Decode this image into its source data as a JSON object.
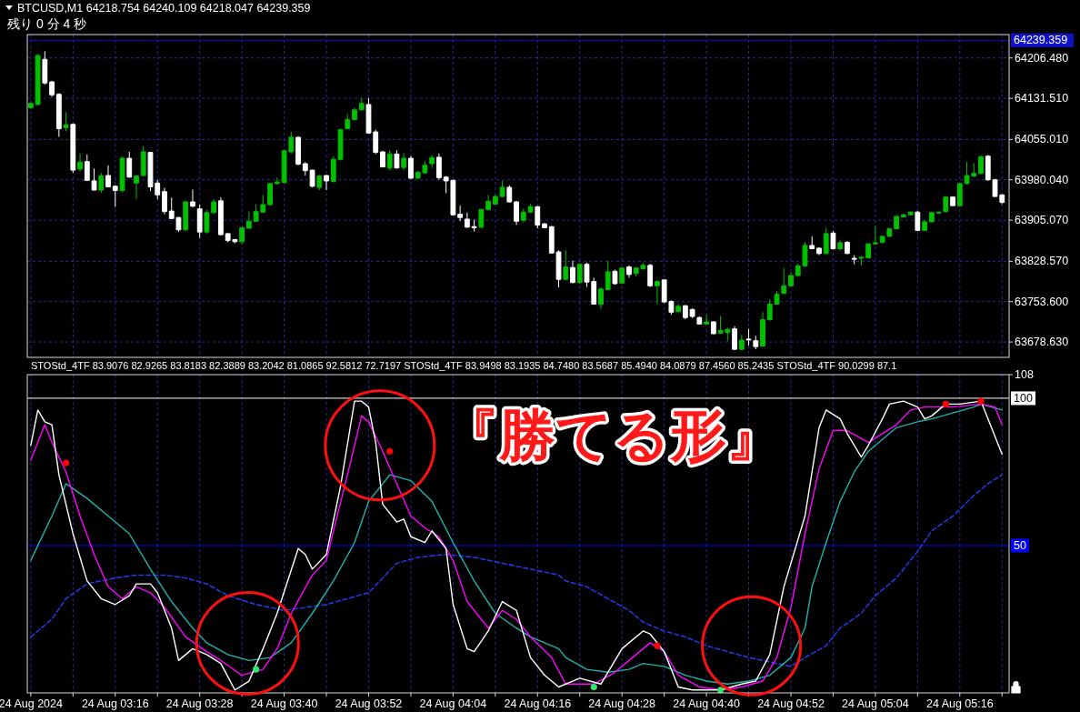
{
  "chart_data": [
    {
      "type": "candlestick",
      "annotations": [
        "BTCUSD,M1  64218.754 64240.109 64218.047 64239.359",
        "残り 0 分 4 秒"
      ],
      "x": [
        "2024-08-24T03:04",
        "2024-08-24T03:05",
        "2024-08-24T03:06",
        "2024-08-24T03:07",
        "2024-08-24T03:08",
        "2024-08-24T03:09",
        "2024-08-24T03:10",
        "2024-08-24T03:11",
        "2024-08-24T03:12",
        "2024-08-24T03:13",
        "2024-08-24T03:14",
        "2024-08-24T03:15",
        "2024-08-24T03:16",
        "2024-08-24T03:17",
        "2024-08-24T03:18",
        "2024-08-24T03:19",
        "2024-08-24T03:20",
        "2024-08-24T03:21",
        "2024-08-24T03:22",
        "2024-08-24T03:23",
        "2024-08-24T03:24",
        "2024-08-24T03:25",
        "2024-08-24T03:26",
        "2024-08-24T03:27",
        "2024-08-24T03:28",
        "2024-08-24T03:29",
        "2024-08-24T03:30",
        "2024-08-24T03:31",
        "2024-08-24T03:32",
        "2024-08-24T03:33",
        "2024-08-24T03:34",
        "2024-08-24T03:35",
        "2024-08-24T03:36",
        "2024-08-24T03:37",
        "2024-08-24T03:38",
        "2024-08-24T03:39",
        "2024-08-24T03:40",
        "2024-08-24T03:41",
        "2024-08-24T03:42",
        "2024-08-24T03:43",
        "2024-08-24T03:44",
        "2024-08-24T03:45",
        "2024-08-24T03:46",
        "2024-08-24T03:47",
        "2024-08-24T03:48",
        "2024-08-24T03:49",
        "2024-08-24T03:50",
        "2024-08-24T03:51",
        "2024-08-24T03:52",
        "2024-08-24T03:53",
        "2024-08-24T03:54",
        "2024-08-24T03:55",
        "2024-08-24T03:56",
        "2024-08-24T03:57",
        "2024-08-24T03:58",
        "2024-08-24T03:59",
        "2024-08-24T04:00",
        "2024-08-24T04:01",
        "2024-08-24T04:02",
        "2024-08-24T04:03",
        "2024-08-24T04:04",
        "2024-08-24T04:05",
        "2024-08-24T04:06",
        "2024-08-24T04:07",
        "2024-08-24T04:08",
        "2024-08-24T04:09",
        "2024-08-24T04:10",
        "2024-08-24T04:11",
        "2024-08-24T04:12",
        "2024-08-24T04:13",
        "2024-08-24T04:14",
        "2024-08-24T04:15",
        "2024-08-24T04:16",
        "2024-08-24T04:17",
        "2024-08-24T04:18",
        "2024-08-24T04:19",
        "2024-08-24T04:20",
        "2024-08-24T04:21",
        "2024-08-24T04:22",
        "2024-08-24T04:23",
        "2024-08-24T04:24",
        "2024-08-24T04:25",
        "2024-08-24T04:26",
        "2024-08-24T04:27",
        "2024-08-24T04:28",
        "2024-08-24T04:29",
        "2024-08-24T04:30",
        "2024-08-24T04:31",
        "2024-08-24T04:32",
        "2024-08-24T04:33",
        "2024-08-24T04:34",
        "2024-08-24T04:35",
        "2024-08-24T04:36",
        "2024-08-24T04:37",
        "2024-08-24T04:38",
        "2024-08-24T04:39",
        "2024-08-24T04:40",
        "2024-08-24T04:41",
        "2024-08-24T04:42",
        "2024-08-24T04:43",
        "2024-08-24T04:44",
        "2024-08-24T04:45",
        "2024-08-24T04:46",
        "2024-08-24T04:47",
        "2024-08-24T04:48",
        "2024-08-24T04:49",
        "2024-08-24T04:50",
        "2024-08-24T04:51",
        "2024-08-24T04:52",
        "2024-08-24T04:53",
        "2024-08-24T04:54",
        "2024-08-24T04:55",
        "2024-08-24T04:56",
        "2024-08-24T04:57",
        "2024-08-24T04:58",
        "2024-08-24T04:59",
        "2024-08-24T05:00",
        "2024-08-24T05:01",
        "2024-08-24T05:02",
        "2024-08-24T05:03",
        "2024-08-24T05:04",
        "2024-08-24T05:05",
        "2024-08-24T05:06",
        "2024-08-24T05:07",
        "2024-08-24T05:08",
        "2024-08-24T05:09",
        "2024-08-24T05:10",
        "2024-08-24T05:11",
        "2024-08-24T05:12",
        "2024-08-24T05:13",
        "2024-08-24T05:14",
        "2024-08-24T05:15",
        "2024-08-24T05:16",
        "2024-08-24T05:17",
        "2024-08-24T05:18",
        "2024-08-24T05:19",
        "2024-08-24T05:20",
        "2024-08-24T05:21",
        "2024-08-24T05:22"
      ],
      "ohlc": [
        [
          64114,
          64124,
          64112,
          64122
        ],
        [
          64120,
          64214,
          64118,
          64211
        ],
        [
          64204,
          64219,
          64157,
          64160
        ],
        [
          64162,
          64164,
          64134,
          64138
        ],
        [
          64139,
          64141,
          64060,
          64075
        ],
        [
          64077,
          64106,
          64070,
          64082
        ],
        [
          64083,
          64085,
          63993,
          63998
        ],
        [
          64000,
          64029,
          63996,
          64013
        ],
        [
          64014,
          64027,
          63978,
          63979
        ],
        [
          63978,
          64001,
          63960,
          63961
        ],
        [
          63961,
          63993,
          63956,
          63987
        ],
        [
          63988,
          64007,
          63966,
          63967
        ],
        [
          63968,
          63970,
          63930,
          63960
        ],
        [
          63960,
          64023,
          63957,
          64020
        ],
        [
          64020,
          64032,
          63984,
          63985
        ],
        [
          63974,
          63989,
          63944,
          63987
        ],
        [
          63988,
          64043,
          63987,
          64032
        ],
        [
          64031,
          64032,
          63959,
          63967
        ],
        [
          63974,
          63980,
          63944,
          63952
        ],
        [
          63958,
          63965,
          63916,
          63921
        ],
        [
          63922,
          63947,
          63907,
          63908
        ],
        [
          63910,
          63911,
          63883,
          63887
        ],
        [
          63887,
          63941,
          63885,
          63939
        ],
        [
          63939,
          63962,
          63929,
          63931
        ],
        [
          63926,
          63934,
          63872,
          63883
        ],
        [
          63883,
          63924,
          63880,
          63919
        ],
        [
          63919,
          63944,
          63917,
          63939
        ],
        [
          63941,
          63947,
          63877,
          63878
        ],
        [
          63880,
          63881,
          63864,
          63867
        ],
        [
          63869,
          63870,
          63862,
          63865
        ],
        [
          63865,
          63893,
          63860,
          63891
        ],
        [
          63890,
          63921,
          63889,
          63903
        ],
        [
          63903,
          63934,
          63902,
          63921
        ],
        [
          63920,
          63952,
          63919,
          63934
        ],
        [
          63934,
          63975,
          63932,
          63973
        ],
        [
          63973,
          63984,
          63972,
          63976
        ],
        [
          63975,
          64035,
          63974,
          64034
        ],
        [
          64032,
          64069,
          64029,
          64059
        ],
        [
          64059,
          64061,
          64007,
          64009
        ],
        [
          64010,
          64013,
          63988,
          63997
        ],
        [
          63998,
          63999,
          63966,
          63968
        ],
        [
          63966,
          63989,
          63961,
          63987
        ],
        [
          63988,
          63989,
          63961,
          63978
        ],
        [
          63977,
          64024,
          63975,
          64018
        ],
        [
          64018,
          64075,
          64016,
          64073
        ],
        [
          64075,
          64102,
          64074,
          64092
        ],
        [
          64092,
          64114,
          64091,
          64110
        ],
        [
          64110,
          64132,
          64109,
          64122
        ],
        [
          64120,
          64132,
          64066,
          64067
        ],
        [
          64069,
          64073,
          64028,
          64031
        ],
        [
          64032,
          64033,
          64003,
          64004
        ],
        [
          64002,
          64035,
          63998,
          64028
        ],
        [
          64028,
          64035,
          64001,
          64002
        ],
        [
          64003,
          64030,
          63998,
          64020
        ],
        [
          64020,
          64024,
          63982,
          63983
        ],
        [
          63983,
          63996,
          63982,
          63994
        ],
        [
          63993,
          64014,
          63992,
          64007
        ],
        [
          64010,
          64026,
          64002,
          64021
        ],
        [
          64022,
          64029,
          63980,
          63984
        ],
        [
          63985,
          63987,
          63955,
          63978
        ],
        [
          63979,
          63980,
          63914,
          63915
        ],
        [
          63916,
          63932,
          63903,
          63910
        ],
        [
          63907,
          63919,
          63891,
          63892
        ],
        [
          63893,
          63906,
          63884,
          63891
        ],
        [
          63892,
          63926,
          63890,
          63925
        ],
        [
          63925,
          63952,
          63923,
          63940
        ],
        [
          63935,
          63952,
          63934,
          63949
        ],
        [
          63949,
          63978,
          63948,
          63966
        ],
        [
          63966,
          63970,
          63938,
          63939
        ],
        [
          63939,
          63941,
          63896,
          63903
        ],
        [
          63905,
          63926,
          63901,
          63920
        ],
        [
          63920,
          63935,
          63919,
          63930
        ],
        [
          63930,
          63931,
          63890,
          63896
        ],
        [
          63898,
          63900,
          63890,
          63891
        ],
        [
          63893,
          63894,
          63843,
          63844
        ],
        [
          63846,
          63849,
          63780,
          63795
        ],
        [
          63795,
          63849,
          63794,
          63818
        ],
        [
          63817,
          63830,
          63788,
          63789
        ],
        [
          63789,
          63825,
          63787,
          63823
        ],
        [
          63823,
          63826,
          63781,
          63790
        ],
        [
          63791,
          63798,
          63748,
          63749
        ],
        [
          63749,
          63780,
          63740,
          63777
        ],
        [
          63776,
          63829,
          63775,
          63809
        ],
        [
          63810,
          63813,
          63785,
          63787
        ],
        [
          63788,
          63817,
          63787,
          63816
        ],
        [
          63818,
          63821,
          63798,
          63804
        ],
        [
          63806,
          63817,
          63800,
          63816
        ],
        [
          63815,
          63825,
          63813,
          63821
        ],
        [
          63821,
          63824,
          63781,
          63783
        ],
        [
          63783,
          63793,
          63749,
          63791
        ],
        [
          63794,
          63795,
          63751,
          63753
        ],
        [
          63754,
          63756,
          63729,
          63734
        ],
        [
          63735,
          63749,
          63734,
          63745
        ],
        [
          63746,
          63747,
          63721,
          63724
        ],
        [
          63739,
          63741,
          63723,
          63726
        ],
        [
          63724,
          63726,
          63711,
          63712
        ],
        [
          63712,
          63729,
          63711,
          63716
        ],
        [
          63716,
          63717,
          63693,
          63694
        ],
        [
          63695,
          63727,
          63694,
          63700
        ],
        [
          63696,
          63705,
          63680,
          63702
        ],
        [
          63703,
          63708,
          63664,
          63665
        ],
        [
          63665,
          63692,
          63663,
          63682
        ],
        [
          63684,
          63703,
          63672,
          63683
        ],
        [
          63681,
          63690,
          63665,
          63670
        ],
        [
          63671,
          63734,
          63670,
          63720
        ],
        [
          63720,
          63758,
          63718,
          63749
        ],
        [
          63749,
          63773,
          63748,
          63767
        ],
        [
          63769,
          63816,
          63767,
          63783
        ],
        [
          63783,
          63808,
          63782,
          63802
        ],
        [
          63802,
          63824,
          63800,
          63820
        ],
        [
          63820,
          63864,
          63818,
          63858
        ],
        [
          63858,
          63875,
          63851,
          63852
        ],
        [
          63853,
          63854,
          63840,
          63843
        ],
        [
          63843,
          63891,
          63842,
          63880
        ],
        [
          63881,
          63885,
          63850,
          63852
        ],
        [
          63852,
          63867,
          63849,
          63863
        ],
        [
          63864,
          63866,
          63842,
          63843
        ],
        [
          63834,
          63840,
          63823,
          63833
        ],
        [
          63835,
          63838,
          63820,
          63836
        ],
        [
          63835,
          63862,
          63834,
          63861
        ],
        [
          63861,
          63894,
          63860,
          63863
        ],
        [
          63864,
          63876,
          63862,
          63875
        ],
        [
          63875,
          63890,
          63874,
          63889
        ],
        [
          63889,
          63914,
          63888,
          63912
        ],
        [
          63911,
          63917,
          63910,
          63915
        ],
        [
          63915,
          63921,
          63914,
          63920
        ],
        [
          63920,
          63922,
          63885,
          63886
        ],
        [
          63886,
          63906,
          63885,
          63902
        ],
        [
          63902,
          63921,
          63901,
          63919
        ],
        [
          63919,
          63921,
          63918,
          63920
        ],
        [
          63921,
          63949,
          63920,
          63948
        ],
        [
          63948,
          63949,
          63931,
          63932
        ],
        [
          63932,
          63974,
          63931,
          63973
        ],
        [
          63973,
          64013,
          63972,
          63988
        ],
        [
          63987,
          64011,
          63985,
          63992
        ],
        [
          63992,
          64025,
          63990,
          64023
        ],
        [
          64024,
          64026,
          63978,
          63980
        ],
        [
          63980,
          63982,
          63948,
          63949
        ],
        [
          63952,
          63953,
          63935,
          63938
        ]
      ],
      "colors": [
        "#00c000",
        "#00c000",
        "#ffffff",
        "#ffffff",
        "#ffffff",
        "#00c000",
        "#ffffff",
        "#00c000",
        "#ffffff",
        "#ffffff",
        "#00c000",
        "#ffffff",
        "#ffffff",
        "#00c000",
        "#ffffff",
        "#00c000",
        "#00c000",
        "#ffffff",
        "#ffffff",
        "#ffffff",
        "#ffffff",
        "#ffffff",
        "#00c000",
        "#ffffff",
        "#ffffff",
        "#00c000",
        "#00c000",
        "#ffffff",
        "#ffffff",
        "#ffffff",
        "#00c000",
        "#00c000",
        "#00c000",
        "#00c000",
        "#00c000",
        "#00c000",
        "#00c000",
        "#00c000",
        "#ffffff",
        "#ffffff",
        "#ffffff",
        "#00c000",
        "#ffffff",
        "#00c000",
        "#00c000",
        "#00c000",
        "#00c000",
        "#00c000",
        "#ffffff",
        "#ffffff",
        "#ffffff",
        "#00c000",
        "#ffffff",
        "#00c000",
        "#ffffff",
        "#00c000",
        "#00c000",
        "#00c000",
        "#ffffff",
        "#ffffff",
        "#ffffff",
        "#ffffff",
        "#ffffff",
        "#ffffff",
        "#00c000",
        "#00c000",
        "#00c000",
        "#00c000",
        "#ffffff",
        "#ffffff",
        "#00c000",
        "#00c000",
        "#ffffff",
        "#ffffff",
        "#ffffff",
        "#ffffff",
        "#00c000",
        "#ffffff",
        "#00c000",
        "#ffffff",
        "#ffffff",
        "#00c000",
        "#00c000",
        "#ffffff",
        "#00c000",
        "#ffffff",
        "#00c000",
        "#00c000",
        "#ffffff",
        "#00c000",
        "#ffffff",
        "#ffffff",
        "#00c000",
        "#ffffff",
        "#ffffff",
        "#ffffff",
        "#00c000",
        "#ffffff",
        "#00c000",
        "#00c000",
        "#ffffff",
        "#00c000",
        "#ffffff",
        "#ffffff",
        "#00c000",
        "#00c000",
        "#00c000",
        "#00c000",
        "#00c000",
        "#00c000",
        "#00c000",
        "#ffffff",
        "#ffffff",
        "#00c000",
        "#ffffff",
        "#00c000",
        "#ffffff",
        "#ffffff",
        "#00c000",
        "#00c000",
        "#00c000",
        "#00c000",
        "#00c000",
        "#00c000",
        "#00c000",
        "#00c000",
        "#ffffff",
        "#00c000",
        "#00c000",
        "#00c000",
        "#00c000",
        "#ffffff",
        "#00c000",
        "#00c000",
        "#00c000",
        "#00c000",
        "#ffffff",
        "#ffffff",
        "#ffffff"
      ],
      "xlim": [
        "2024-08-24T03:03:30",
        "2024-08-24T05:23"
      ],
      "xticks": [
        "2024-08-24T03:04",
        "2024-08-24T03:10",
        "2024-08-24T03:16",
        "2024-08-24T03:22",
        "2024-08-24T03:28",
        "2024-08-24T03:34",
        "2024-08-24T03:40",
        "2024-08-24T03:46",
        "2024-08-24T03:52",
        "2024-08-24T03:58",
        "2024-08-24T04:04",
        "2024-08-24T04:10",
        "2024-08-24T04:16",
        "2024-08-24T04:22",
        "2024-08-24T04:28",
        "2024-08-24T04:34",
        "2024-08-24T04:40",
        "2024-08-24T04:46",
        "2024-08-24T04:52",
        "2024-08-24T04:58",
        "2024-08-24T05:04",
        "2024-08-24T05:10",
        "2024-08-24T05:16",
        "2024-08-24T05:22"
      ],
      "ylim": [
        63650,
        64250
      ],
      "yticks": [
        {
          "value": 63678.63,
          "label": "63678.630"
        },
        {
          "value": 63753.6,
          "label": "63753.600"
        },
        {
          "value": 63828.57,
          "label": "63828.570"
        },
        {
          "value": 63905.07,
          "label": "63905.070"
        },
        {
          "value": 63980.04,
          "label": "63980.040"
        },
        {
          "value": 64055.01,
          "label": "64055.010"
        },
        {
          "value": 64131.51,
          "label": "64131.510"
        },
        {
          "value": 64206.48,
          "label": "64206.480"
        }
      ],
      "grid": true,
      "tick_labels": "y",
      "ref_lines": [
        {
          "axis": "y",
          "value": 64239.359,
          "label": "64239.359",
          "color": "#1010c8"
        }
      ]
    },
    {
      "type": "line",
      "annotations": [
        "STOStd_4TF 83.9076 82.9265 83.8183 82.3889 83.2042 81.0865 92.5812 72.7197  STOStd_4TF 83.9498 83.1935 84.7480 83.5687 85.4940 84.0879 87.4560 85.2435  STOStd_4TF 90.0299 87.1",
        "『勝てる形』"
      ],
      "series": [
        {
          "color": "#2040ff",
          "line_style": "dashed",
          "x": [
            "2024-08-24T03:04",
            "2024-08-24T03:07",
            "2024-08-24T03:09",
            "2024-08-24T03:12",
            "2024-08-24T03:16",
            "2024-08-24T03:19",
            "2024-08-24T03:23",
            "2024-08-24T03:26",
            "2024-08-24T03:29",
            "2024-08-24T03:32",
            "2024-08-24T03:36",
            "2024-08-24T03:40",
            "2024-08-24T03:43",
            "2024-08-24T03:46",
            "2024-08-24T03:49",
            "2024-08-24T03:52",
            "2024-08-24T03:54",
            "2024-08-24T03:56",
            "2024-08-24T03:59",
            "2024-08-24T04:03",
            "2024-08-24T04:07",
            "2024-08-24T04:11",
            "2024-08-24T04:15",
            "2024-08-24T04:19",
            "2024-08-24T04:20",
            "2024-08-24T04:23",
            "2024-08-24T04:26",
            "2024-08-24T04:29",
            "2024-08-24T04:31",
            "2024-08-24T04:34",
            "2024-08-24T04:37",
            "2024-08-24T04:40",
            "2024-08-24T04:43",
            "2024-08-24T04:46",
            "2024-08-24T04:48",
            "2024-08-24T04:52",
            "2024-08-24T04:54",
            "2024-08-24T04:57",
            "2024-08-24T04:59",
            "2024-08-24T05:02",
            "2024-08-24T05:04",
            "2024-08-24T05:07",
            "2024-08-24T05:10",
            "2024-08-24T05:12",
            "2024-08-24T05:15",
            "2024-08-24T05:18",
            "2024-08-24T05:20",
            "2024-08-24T05:22"
          ],
          "values": [
            19,
            25,
            32,
            37,
            39,
            40,
            40,
            39,
            37,
            33,
            30,
            28,
            29,
            30,
            32,
            34,
            39,
            44,
            46,
            47,
            46,
            44,
            42,
            40,
            38,
            36,
            32,
            28,
            24,
            21,
            19,
            16,
            14,
            12,
            11,
            9,
            12,
            16,
            22,
            27,
            33,
            39,
            48,
            55,
            60,
            67,
            71,
            74
          ]
        },
        {
          "color": "#20b2aa",
          "x": [
            "2024-08-24T03:04",
            "2024-08-24T03:07",
            "2024-08-24T03:09",
            "2024-08-24T03:12",
            "2024-08-24T03:15",
            "2024-08-24T03:18",
            "2024-08-24T03:21",
            "2024-08-24T03:24",
            "2024-08-24T03:27",
            "2024-08-24T03:29",
            "2024-08-24T03:32",
            "2024-08-24T03:35",
            "2024-08-24T03:38",
            "2024-08-24T03:41",
            "2024-08-24T03:44",
            "2024-08-24T03:47",
            "2024-08-24T03:50",
            "2024-08-24T03:52",
            "2024-08-24T03:55",
            "2024-08-24T03:58",
            "2024-08-24T04:01",
            "2024-08-24T04:04",
            "2024-08-24T04:07",
            "2024-08-24T04:10",
            "2024-08-24T04:13",
            "2024-08-24T04:15",
            "2024-08-24T04:19",
            "2024-08-24T04:20",
            "2024-08-24T04:23",
            "2024-08-24T04:26",
            "2024-08-24T04:29",
            "2024-08-24T04:31",
            "2024-08-24T04:34",
            "2024-08-24T04:37",
            "2024-08-24T04:40",
            "2024-08-24T04:43",
            "2024-08-24T04:46",
            "2024-08-24T04:49",
            "2024-08-24T04:52",
            "2024-08-24T04:54",
            "2024-08-24T04:55",
            "2024-08-24T04:57",
            "2024-08-24T04:59",
            "2024-08-24T05:01",
            "2024-08-24T05:03",
            "2024-08-24T05:05",
            "2024-08-24T05:07",
            "2024-08-24T05:10",
            "2024-08-24T05:12",
            "2024-08-24T05:15",
            "2024-08-24T05:18",
            "2024-08-24T05:19",
            "2024-08-24T05:22"
          ],
          "values": [
            45,
            60,
            71,
            66,
            60,
            54,
            42,
            31,
            22,
            17,
            13,
            11,
            12,
            17,
            27,
            38,
            51,
            65,
            74,
            72,
            65,
            51,
            38,
            27,
            22,
            19,
            15,
            12,
            8,
            7,
            8,
            10,
            9,
            6,
            4,
            3,
            4,
            6,
            12,
            22,
            36,
            51,
            65,
            75,
            82,
            86,
            90,
            92,
            93,
            95,
            97,
            98,
            96
          ]
        },
        {
          "color": "#ff00ff",
          "x": [
            "2024-08-24T03:04",
            "2024-08-24T03:06",
            "2024-08-24T03:07",
            "2024-08-24T03:09",
            "2024-08-24T03:11",
            "2024-08-24T03:13",
            "2024-08-24T03:15",
            "2024-08-24T03:17",
            "2024-08-24T03:19",
            "2024-08-24T03:21",
            "2024-08-24T03:23",
            "2024-08-24T03:26",
            "2024-08-24T03:29",
            "2024-08-24T03:31",
            "2024-08-24T03:34",
            "2024-08-24T03:37",
            "2024-08-24T03:39",
            "2024-08-24T03:41",
            "2024-08-24T03:44",
            "2024-08-24T03:46",
            "2024-08-24T03:47",
            "2024-08-24T03:49",
            "2024-08-24T03:51",
            "2024-08-24T03:52",
            "2024-08-24T03:54",
            "2024-08-24T03:56",
            "2024-08-24T03:58",
            "2024-08-24T04:00",
            "2024-08-24T04:02",
            "2024-08-24T04:04",
            "2024-08-24T04:06",
            "2024-08-24T04:09",
            "2024-08-24T04:11",
            "2024-08-24T04:13",
            "2024-08-24T04:15",
            "2024-08-24T04:18",
            "2024-08-24T04:20",
            "2024-08-24T04:24",
            "2024-08-24T04:27",
            "2024-08-24T04:30",
            "2024-08-24T04:32",
            "2024-08-24T04:34",
            "2024-08-24T04:36",
            "2024-08-24T04:39",
            "2024-08-24T04:42",
            "2024-08-24T04:45",
            "2024-08-24T04:48",
            "2024-08-24T04:50",
            "2024-08-24T04:52",
            "2024-08-24T04:54",
            "2024-08-24T04:56",
            "2024-08-24T04:58",
            "2024-08-24T05:00",
            "2024-08-24T05:03",
            "2024-08-24T05:05",
            "2024-08-24T05:07",
            "2024-08-24T05:09",
            "2024-08-24T05:11",
            "2024-08-24T05:15",
            "2024-08-24T05:19",
            "2024-08-24T05:21",
            "2024-08-24T05:22"
          ],
          "values": [
            79,
            91,
            85,
            75,
            60,
            47,
            36,
            32,
            36,
            34,
            29,
            19,
            14,
            11,
            6,
            8,
            15,
            27,
            40,
            45,
            55,
            74,
            94,
            92,
            82,
            71,
            60,
            56,
            53,
            45,
            31,
            22,
            28,
            25,
            19,
            12,
            3,
            3,
            7,
            13,
            17,
            14,
            6,
            2,
            1,
            2,
            4,
            12,
            29,
            54,
            76,
            89,
            89,
            85,
            88,
            91,
            96,
            97,
            97,
            98,
            97,
            91
          ]
        },
        {
          "color": "#ffffff",
          "x": [
            "2024-08-24T03:04",
            "2024-08-24T03:05",
            "2024-08-24T03:06",
            "2024-08-24T03:07",
            "2024-08-24T03:08",
            "2024-08-24T03:10",
            "2024-08-24T03:12",
            "2024-08-24T03:14",
            "2024-08-24T03:16",
            "2024-08-24T03:18",
            "2024-08-24T03:19",
            "2024-08-24T03:21",
            "2024-08-24T03:22",
            "2024-08-24T03:24",
            "2024-08-24T03:25",
            "2024-08-24T03:27",
            "2024-08-24T03:29",
            "2024-08-24T03:31",
            "2024-08-24T03:33",
            "2024-08-24T03:35",
            "2024-08-24T03:37",
            "2024-08-24T03:39",
            "2024-08-24T03:42",
            "2024-08-24T03:43",
            "2024-08-24T03:44",
            "2024-08-24T03:46",
            "2024-08-24T03:48",
            "2024-08-24T03:50",
            "2024-08-24T03:51",
            "2024-08-24T03:52",
            "2024-08-24T03:53",
            "2024-08-24T03:54",
            "2024-08-24T03:56",
            "2024-08-24T03:57",
            "2024-08-24T03:58",
            "2024-08-24T04:00",
            "2024-08-24T04:01",
            "2024-08-24T04:03",
            "2024-08-24T04:04",
            "2024-08-24T04:06",
            "2024-08-24T04:07",
            "2024-08-24T04:09",
            "2024-08-24T04:11",
            "2024-08-24T04:13",
            "2024-08-24T04:15",
            "2024-08-24T04:17",
            "2024-08-24T04:19",
            "2024-08-24T04:22",
            "2024-08-24T04:25",
            "2024-08-24T04:28",
            "2024-08-24T04:31",
            "2024-08-24T04:32",
            "2024-08-24T04:34",
            "2024-08-24T04:36",
            "2024-08-24T04:38",
            "2024-08-24T04:42",
            "2024-08-24T04:45",
            "2024-08-24T04:47",
            "2024-08-24T04:49",
            "2024-08-24T04:51",
            "2024-08-24T04:54",
            "2024-08-24T04:56",
            "2024-08-24T04:57",
            "2024-08-24T04:59",
            "2024-08-24T05:00",
            "2024-08-24T05:02",
            "2024-08-24T05:03",
            "2024-08-24T05:05",
            "2024-08-24T05:06",
            "2024-08-24T05:08",
            "2024-08-24T05:10",
            "2024-08-24T05:11",
            "2024-08-24T05:12",
            "2024-08-24T05:14",
            "2024-08-24T05:16",
            "2024-08-24T05:19",
            "2024-08-24T05:20",
            "2024-08-24T05:22"
          ],
          "values": [
            84,
            96,
            92,
            91,
            74,
            54,
            38,
            32,
            30,
            33,
            37,
            37,
            34,
            22,
            11,
            15,
            13,
            10,
            1,
            4,
            15,
            27,
            49,
            47,
            42,
            47,
            70,
            99,
            99,
            97,
            85,
            64,
            58,
            59,
            53,
            51,
            55,
            49,
            30,
            15,
            14,
            21,
            31,
            28,
            12,
            6,
            2,
            5,
            3,
            15,
            21,
            20,
            14,
            2,
            1,
            1,
            3,
            4,
            13,
            36,
            60,
            90,
            96,
            93,
            88,
            80,
            84,
            93,
            98,
            99,
            97,
            93,
            94,
            98,
            98,
            99,
            93,
            81
          ]
        },
        {
          "type": "scatter",
          "marker": "circle",
          "x": [
            "2024-08-24T03:09",
            "2024-08-24T03:36",
            "2024-08-24T03:55",
            "2024-08-24T04:24",
            "2024-08-24T04:33",
            "2024-08-24T04:42",
            "2024-08-24T05:14",
            "2024-08-24T05:19"
          ],
          "values": [
            78,
            8,
            82,
            2,
            16,
            1,
            98,
            99
          ],
          "colors": [
            "#ff0000",
            "#2ee86e",
            "#ff0000",
            "#2ee86e",
            "#ff0000",
            "#2ee86e",
            "#ff0000",
            "#ff0000"
          ]
        }
      ],
      "xlim": [
        "2024-08-24T03:03:30",
        "2024-08-24T05:23"
      ],
      "xticks": [
        {
          "value": "2024-08-24T03:04",
          "label": "24 Aug 2024"
        },
        {
          "value": "2024-08-24T03:10",
          "label": null
        },
        {
          "value": "2024-08-24T03:16",
          "label": "24 Aug 03:16"
        },
        {
          "value": "2024-08-24T03:22",
          "label": null
        },
        {
          "value": "2024-08-24T03:28",
          "label": "24 Aug 03:28"
        },
        {
          "value": "2024-08-24T03:34",
          "label": null
        },
        {
          "value": "2024-08-24T03:40",
          "label": "24 Aug 03:40"
        },
        {
          "value": "2024-08-24T03:46",
          "label": null
        },
        {
          "value": "2024-08-24T03:52",
          "label": "24 Aug 03:52"
        },
        {
          "value": "2024-08-24T03:58",
          "label": null
        },
        {
          "value": "2024-08-24T04:04",
          "label": "24 Aug 04:04"
        },
        {
          "value": "2024-08-24T04:10",
          "label": null
        },
        {
          "value": "2024-08-24T04:16",
          "label": "24 Aug 04:16"
        },
        {
          "value": "2024-08-24T04:22",
          "label": null
        },
        {
          "value": "2024-08-24T04:28",
          "label": "24 Aug 04:28"
        },
        {
          "value": "2024-08-24T04:34",
          "label": null
        },
        {
          "value": "2024-08-24T04:40",
          "label": "24 Aug 04:40"
        },
        {
          "value": "2024-08-24T04:46",
          "label": null
        },
        {
          "value": "2024-08-24T04:52",
          "label": "24 Aug 04:52"
        },
        {
          "value": "2024-08-24T04:58",
          "label": null
        },
        {
          "value": "2024-08-24T05:04",
          "label": "24 Aug 05:04"
        },
        {
          "value": "2024-08-24T05:10",
          "label": null
        },
        {
          "value": "2024-08-24T05:16",
          "label": "24 Aug 05:16"
        },
        {
          "value": "2024-08-24T05:22",
          "label": null
        }
      ],
      "ylim": [
        0,
        108
      ],
      "yticks": [
        50,
        100,
        108
      ],
      "grid": "x",
      "ref_lines": [
        {
          "axis": "y",
          "value": 100,
          "color": "#ffffff"
        },
        {
          "axis": "y",
          "value": 50,
          "color": "#0000ff"
        }
      ]
    }
  ]
}
